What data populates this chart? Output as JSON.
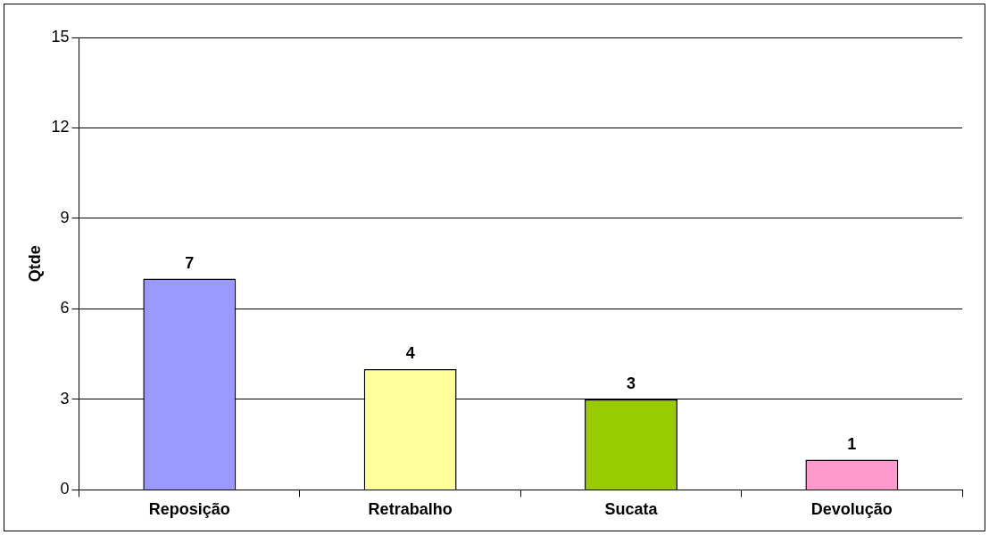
{
  "chart_data": {
    "type": "bar",
    "ylabel": "Qtde",
    "categories": [
      "Reposição",
      "Retrabalho",
      "Sucata",
      "Devolução"
    ],
    "values": [
      7,
      4,
      3,
      1
    ],
    "colors": [
      "#9999ff",
      "#ffff99",
      "#99cc00",
      "#ff99cc"
    ],
    "ylim": [
      0,
      15
    ],
    "yticks": [
      0,
      3,
      6,
      9,
      12,
      15
    ],
    "grid": "y",
    "legend": false,
    "data_labels": true
  }
}
